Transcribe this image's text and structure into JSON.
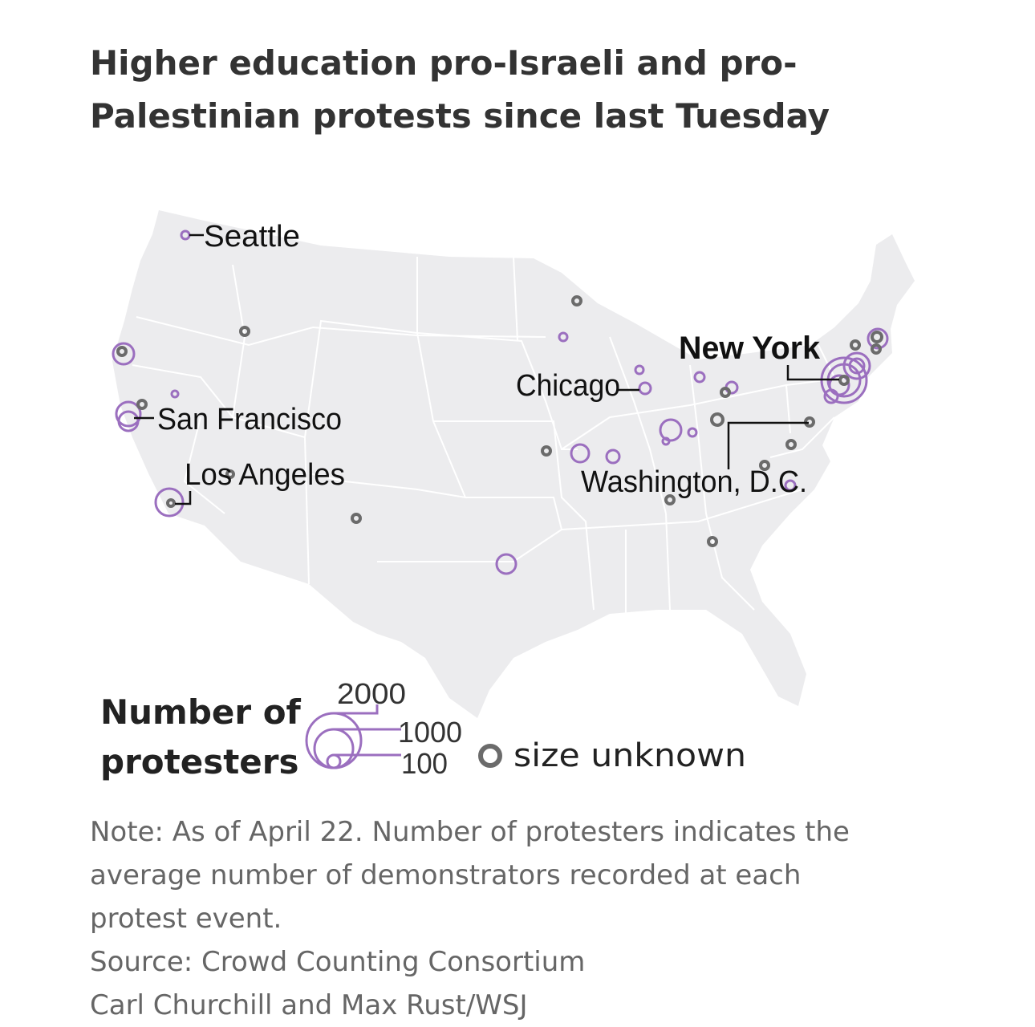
{
  "title": "Higher education pro-Israeli and pro-Palestinian protests since last Tuesday",
  "colors": {
    "map_fill": "#ececee",
    "state_border": "#ffffff",
    "known_size": "#9b6fbf",
    "unknown_size": "#6b6b6b",
    "label": "#111111",
    "note_text": "#666666"
  },
  "cities": {
    "seattle": "Seattle",
    "san_francisco": "San Francisco",
    "los_angeles": "Los Angeles",
    "chicago": "Chicago",
    "new_york": "New York",
    "washington": "Washington, D.C."
  },
  "legend": {
    "title": "Number of protesters",
    "sizes": [
      "2000",
      "1000",
      "100"
    ],
    "unknown_label": "size unknown"
  },
  "note": {
    "line1": "Note: As of April 22. Number of protesters indicates the",
    "line2": "average number of demonstrators recorded at each",
    "line3": "protest event.",
    "source": "Source: Crowd Counting Consortium",
    "credit": "Carl Churchill and Max Rust/WSJ"
  }
}
